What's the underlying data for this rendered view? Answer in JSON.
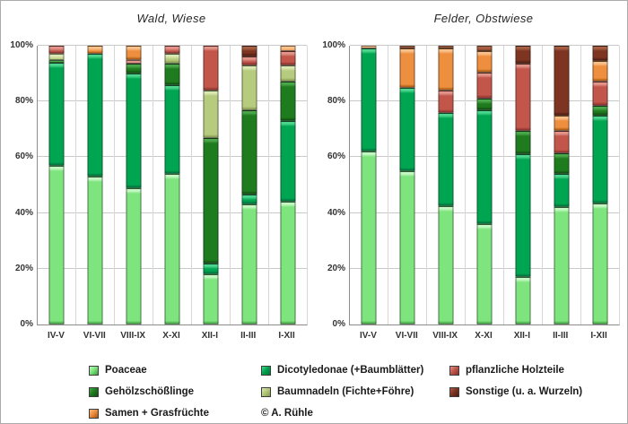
{
  "chart_data": [
    {
      "type": "bar",
      "stacked": true,
      "title": "Wald, Wiese",
      "categories": [
        "IV-V",
        "VI-VII",
        "VIII-IX",
        "X-XI",
        "XII-I",
        "II-III",
        "I-XII"
      ],
      "ylabel": "",
      "ylim": [
        0,
        100
      ],
      "yticks": [
        "0%",
        "20%",
        "40%",
        "60%",
        "80%",
        "100%"
      ],
      "grid": true,
      "series": [
        {
          "name": "Poaceae",
          "key": "poaceae",
          "values": [
            57,
            53,
            49,
            54,
            18,
            43,
            44
          ]
        },
        {
          "name": "Dicotyledonae (+Baumblätter)",
          "key": "dicotyledonae",
          "values": [
            37,
            44,
            41,
            32,
            4,
            3.5,
            29
          ]
        },
        {
          "name": "Gehölzschößlinge",
          "key": "gehoelzschoesslinge",
          "values": [
            1,
            0,
            3.5,
            7.5,
            45,
            30.5,
            14
          ]
        },
        {
          "name": "Baumnadeln (Fichte+Föhre)",
          "key": "baumnadeln",
          "values": [
            2,
            0,
            0,
            3.5,
            17,
            16,
            6
          ]
        },
        {
          "name": "pflanzliche Holzteile",
          "key": "holzteile",
          "values": [
            3,
            0,
            1.5,
            3,
            16,
            3,
            5
          ]
        },
        {
          "name": "Samen + Grasfrüchte",
          "key": "samen",
          "values": [
            0,
            3,
            5,
            0,
            0,
            0,
            2
          ]
        },
        {
          "name": "Sonstige (u. a. Wurzeln)",
          "key": "sonstige",
          "values": [
            0,
            0,
            0,
            0,
            0,
            4,
            0
          ]
        }
      ]
    },
    {
      "type": "bar",
      "stacked": true,
      "title": "Felder, Obstwiese",
      "categories": [
        "IV-V",
        "VI-VII",
        "VIII-IX",
        "X-XI",
        "XII-I",
        "II-III",
        "I-XII"
      ],
      "ylabel": "",
      "ylim": [
        0,
        100
      ],
      "yticks": [
        "0%",
        "20%",
        "40%",
        "60%",
        "80%",
        "100%"
      ],
      "grid": true,
      "series": [
        {
          "name": "Poaceae",
          "key": "poaceae",
          "values": [
            62,
            55,
            42.5,
            36,
            17,
            42,
            43.5
          ]
        },
        {
          "name": "Dicotyledonae (+Baumblätter)",
          "key": "dicotyledonae",
          "values": [
            37,
            30,
            33.5,
            41,
            44,
            12,
            31.5
          ]
        },
        {
          "name": "Gehölzschößlinge",
          "key": "gehoelzschoesslinge",
          "values": [
            0,
            0,
            0,
            4,
            8.5,
            7.5,
            3.5
          ]
        },
        {
          "name": "Baumnadeln (Fichte+Föhre)",
          "key": "baumnadeln",
          "values": [
            0,
            0,
            0,
            0,
            0,
            0,
            0
          ]
        },
        {
          "name": "pflanzliche Holzteile",
          "key": "holzteile",
          "values": [
            0,
            0,
            8,
            9.5,
            24,
            8,
            8.5
          ]
        },
        {
          "name": "Samen + Grasfrüchte",
          "key": "samen",
          "values": [
            1,
            14,
            15,
            7.5,
            0,
            5.5,
            7.5
          ]
        },
        {
          "name": "Sonstige (u. a. Wurzeln)",
          "key": "sonstige",
          "values": [
            0,
            1,
            1,
            2,
            6.5,
            25,
            5.5
          ]
        }
      ]
    }
  ],
  "palette": {
    "poaceae": {
      "base": "#7ee57e",
      "light": "#c4f8c4",
      "dark": "#3f9e3f"
    },
    "dicotyledonae": {
      "base": "#00a551",
      "light": "#4cd68d",
      "dark": "#00713a"
    },
    "gehoelzschoesslinge": {
      "base": "#1e7c1e",
      "light": "#4aa84a",
      "dark": "#124e12"
    },
    "baumnadeln": {
      "base": "#b6cb7d",
      "light": "#dce8b4",
      "dark": "#86994f"
    },
    "holzteile": {
      "base": "#c2564b",
      "light": "#e2948a",
      "dark": "#8a3029"
    },
    "samen": {
      "base": "#ee8f3f",
      "light": "#f8c08b",
      "dark": "#a8560f"
    },
    "sonstige": {
      "base": "#7d3522",
      "light": "#a65f44",
      "dark": "#4e1c0e"
    }
  },
  "legend": {
    "columns": [
      [
        {
          "label": "Poaceae",
          "key": "poaceae"
        },
        {
          "label": "Gehölzschößlinge",
          "key": "gehoelzschoesslinge"
        },
        {
          "label": "Samen + Grasfrüchte",
          "key": "samen"
        }
      ],
      [
        {
          "label": "Dicotyledonae (+Baumblätter)",
          "key": "dicotyledonae"
        },
        {
          "label": "Baumnadeln (Fichte+Föhre)",
          "key": "baumnadeln"
        },
        {
          "label": "© A. Rühle",
          "key": null
        }
      ],
      [
        {
          "label": "pflanzliche Holzteile",
          "key": "holzteile"
        },
        {
          "label": "Sonstige (u. a. Wurzeln)",
          "key": "sonstige"
        }
      ]
    ]
  }
}
